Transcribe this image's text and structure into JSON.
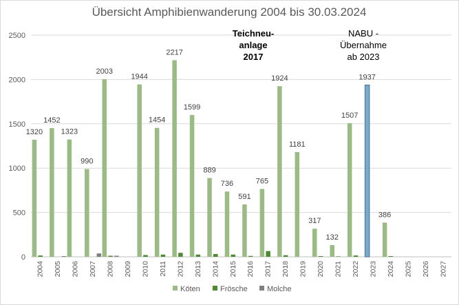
{
  "chart_data": {
    "type": "bar",
    "title": "Übersicht Amphibienwanderung 2004 bis 30.03.2024",
    "categories": [
      "2004",
      "2005",
      "2006",
      "2007",
      "2008",
      "2009",
      "2010",
      "2011",
      "2012",
      "2013",
      "2014",
      "2015",
      "2016",
      "2017",
      "2018",
      "2019",
      "2020",
      "2021",
      "2022",
      "2023",
      "2024",
      "2025",
      "2026",
      "2027"
    ],
    "ylim": [
      0,
      2500
    ],
    "yticks": [
      "0",
      "500",
      "1000",
      "1500",
      "2000",
      "2500"
    ],
    "grid": true,
    "legend_position": "bottom",
    "series": [
      {
        "name": "Köten",
        "color": "#9bbb84",
        "values": [
          1320,
          1452,
          1323,
          990,
          2003,
          0,
          1944,
          1454,
          2217,
          1599,
          889,
          736,
          591,
          765,
          1924,
          1181,
          317,
          132,
          1507,
          1937,
          386,
          0,
          0,
          0
        ],
        "labels": [
          "1320",
          "1452",
          "1323",
          "990",
          "2003",
          "",
          "1944",
          "1454",
          "2217",
          "1599",
          "889",
          "736",
          "591",
          "765",
          "1924",
          "1181",
          "317",
          "132",
          "1507",
          "1937",
          "386",
          "",
          "",
          ""
        ]
      },
      {
        "name": "Frösche",
        "color": "#4e8a34",
        "values": [
          15,
          0,
          0,
          0,
          12,
          0,
          20,
          25,
          45,
          25,
          32,
          25,
          10,
          65,
          18,
          0,
          8,
          5,
          15,
          0,
          8,
          0,
          0,
          0
        ]
      },
      {
        "name": "Molche",
        "color": "#808080",
        "values": [
          0,
          8,
          0,
          38,
          12,
          0,
          0,
          0,
          0,
          0,
          0,
          0,
          0,
          0,
          0,
          0,
          0,
          0,
          0,
          0,
          0,
          0,
          0,
          0
        ]
      }
    ],
    "highlight": {
      "category": "2023",
      "color": "#7aaac6",
      "border": "#41719c"
    },
    "annotations": [
      {
        "lines": [
          "Teichneu-",
          "anlage",
          "2017"
        ]
      },
      {
        "lines": [
          "NABU -",
          "Übernahme",
          "ab 2023"
        ]
      }
    ]
  }
}
